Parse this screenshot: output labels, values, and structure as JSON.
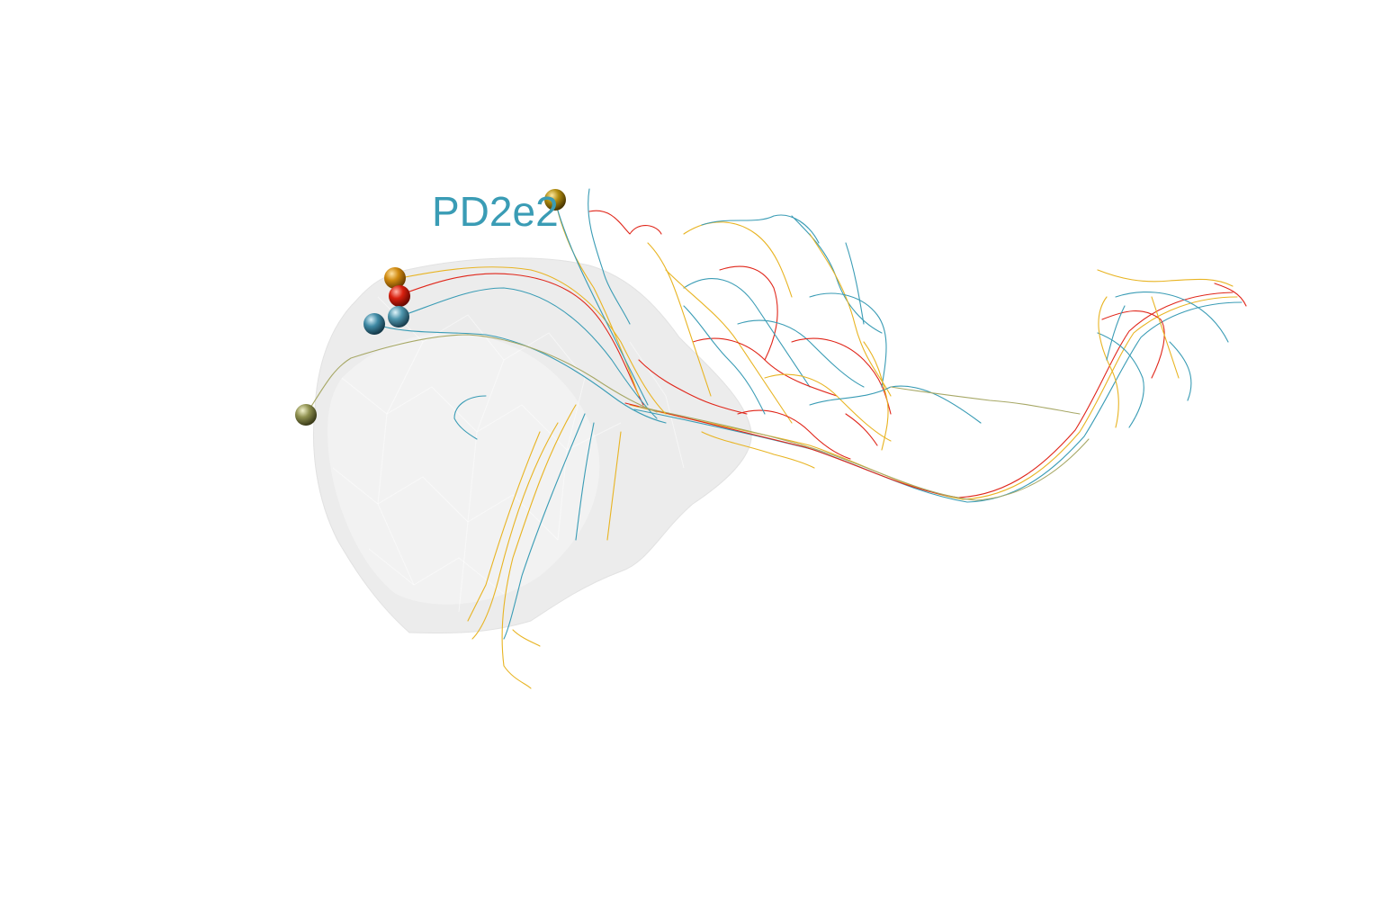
{
  "label": {
    "text": "PD2e2",
    "color": "#3a9cb5"
  },
  "colors": {
    "mesh": "#cfcfcf",
    "neurite_teal": "#3a9cb5",
    "neurite_yellow": "#e8b423",
    "neurite_red": "#e0261a",
    "neurite_olive": "#a7a866",
    "soma_orange": "#d08a10",
    "soma_red": "#d8200f",
    "soma_blue": "#3f8aa5",
    "soma_olive": "#8f9150",
    "soma_gold": "#b08c10"
  },
  "somata": [
    {
      "name": "soma-orange",
      "color": "#d08a10"
    },
    {
      "name": "soma-red",
      "color": "#d8200f"
    },
    {
      "name": "soma-blue-left",
      "color": "#3f8aa5"
    },
    {
      "name": "soma-blue-right",
      "color": "#4e96ad"
    },
    {
      "name": "soma-olive",
      "color": "#8f9150"
    },
    {
      "name": "soma-gold",
      "color": "#b08c10"
    }
  ]
}
